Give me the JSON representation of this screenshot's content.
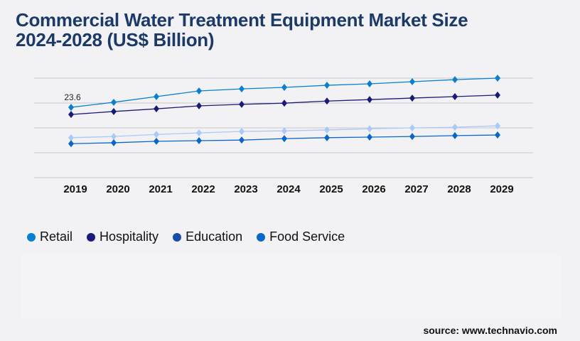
{
  "title_line1": "Commercial Water Treatment Equipment Market Size",
  "title_line2": "2024-2028 (US$ Billion)",
  "source": "source: www.technavio.com",
  "chart_data": {
    "type": "line",
    "title": "Commercial Water Treatment Equipment Market Size 2024-2028 (US$ Billion)",
    "categories": [
      "2019",
      "2020",
      "2021",
      "2022",
      "2023",
      "2024",
      "2025",
      "2026",
      "2027",
      "2028",
      "2029"
    ],
    "ylim": [
      0,
      33.4
    ],
    "grid": true,
    "legend": "bottom-left",
    "annotations": [
      {
        "series": "Retail",
        "category": "2019",
        "text": "23.6"
      }
    ],
    "series": [
      {
        "name": "Retail",
        "color": "#0a7fd0",
        "legend_color": "#0a7fd0",
        "values": [
          23.6,
          25.3,
          27.2,
          29.1,
          29.8,
          30.3,
          31.0,
          31.5,
          32.2,
          32.9,
          33.4
        ]
      },
      {
        "name": "Hospitality",
        "color": "#1a1a78",
        "legend_color": "#1a1a78",
        "values": [
          21.2,
          22.2,
          23.1,
          24.1,
          24.6,
          25.0,
          25.7,
          26.2,
          26.7,
          27.2,
          27.7
        ]
      },
      {
        "name": "Education",
        "color": "#a9c9f7",
        "legend_color": "#1a4aaa",
        "values": [
          13.4,
          13.8,
          14.5,
          15.0,
          15.5,
          15.7,
          16.0,
          16.4,
          16.7,
          16.9,
          17.4
        ]
      },
      {
        "name": "Food Service",
        "color": "#0a66c8",
        "legend_color": "#0a66c8",
        "values": [
          11.4,
          11.7,
          12.2,
          12.4,
          12.6,
          13.1,
          13.4,
          13.6,
          13.8,
          14.1,
          14.3
        ]
      }
    ]
  }
}
